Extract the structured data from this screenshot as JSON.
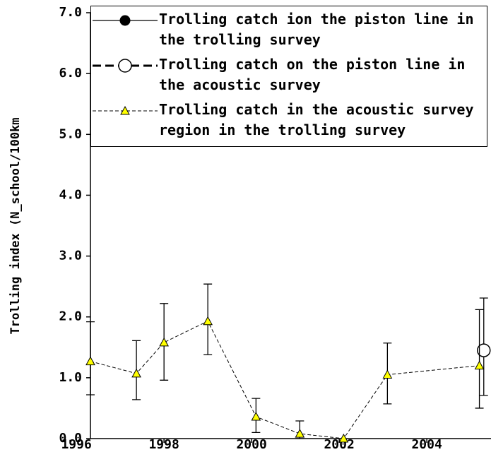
{
  "chart_data": {
    "type": "line",
    "ylabel": "Trolling index (N_school/100km",
    "xlim": [
      1996.32,
      2005.45
    ],
    "xticks": [
      1996,
      1998,
      2000,
      2002,
      2004
    ],
    "ylim": [
      0,
      7
    ],
    "yticks": [
      {
        "value": 0,
        "label": "0.0"
      },
      {
        "value": 1,
        "label": "1.0"
      },
      {
        "value": 2,
        "label": "2.0"
      },
      {
        "value": 3,
        "label": "3.0"
      },
      {
        "value": 4,
        "label": "4.0"
      },
      {
        "value": 5,
        "label": "5.0"
      },
      {
        "value": 6,
        "label": "6.0"
      },
      {
        "value": 7,
        "label": "7.0"
      }
    ],
    "series": [
      {
        "name": "Trolling catch ion the piston line in the trolling survey",
        "color": "#000000",
        "marker": "filled-circle",
        "line": "solid",
        "x": [],
        "values": [],
        "error_low": [],
        "error_high": []
      },
      {
        "name": "Trolling catch on the piston line in the acoustic survey",
        "color": "#000000",
        "marker": "open-circle",
        "line": "bold-dash",
        "x": [
          2005.3
        ],
        "values": [
          1.45
        ],
        "error_low": [
          0.71
        ],
        "error_high": [
          2.31
        ]
      },
      {
        "name": "Trolling catch in the acoustic survey region in the trolling survey",
        "color": "#ffff00",
        "marker": "triangle",
        "line": "thin-dash",
        "x": [
          1996.32,
          1997.37,
          1998.0,
          1999.0,
          2000.1,
          2001.1,
          2002.1,
          2003.1,
          2005.2
        ],
        "values": [
          1.27,
          1.07,
          1.58,
          1.93,
          0.36,
          0.08,
          0.0,
          1.05,
          1.2
        ],
        "error_low": [
          0.72,
          0.64,
          0.96,
          1.38,
          0.1,
          0.0,
          null,
          0.57,
          0.5
        ],
        "error_high": [
          1.92,
          1.61,
          2.22,
          2.54,
          0.66,
          0.29,
          null,
          1.57,
          2.12
        ]
      }
    ]
  }
}
